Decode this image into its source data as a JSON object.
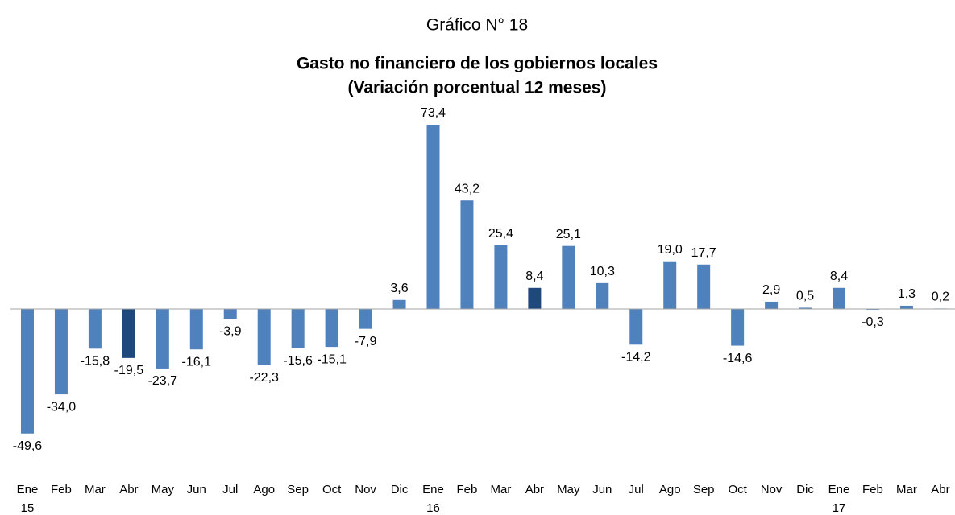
{
  "chart_data": {
    "type": "bar",
    "suptitle": "Gráfico N° 18",
    "title": "Gasto no financiero de los gobiernos locales",
    "subtitle": "(Variación porcentual 12 meses)",
    "categories": [
      "Ene",
      "Feb",
      "Mar",
      "Abr",
      "May",
      "Jun",
      "Jul",
      "Ago",
      "Sep",
      "Oct",
      "Nov",
      "Dic",
      "Ene",
      "Feb",
      "Mar",
      "Abr",
      "May",
      "Jun",
      "Jul",
      "Ago",
      "Sep",
      "Oct",
      "Nov",
      "Dic",
      "Ene",
      "Feb",
      "Mar",
      "Abr"
    ],
    "years": [
      "15",
      null,
      null,
      null,
      null,
      null,
      null,
      null,
      null,
      null,
      null,
      null,
      "16",
      null,
      null,
      null,
      null,
      null,
      null,
      null,
      null,
      null,
      null,
      null,
      "17",
      null,
      null,
      null
    ],
    "values": [
      -49.6,
      -34.0,
      -15.8,
      -19.5,
      -23.7,
      -16.1,
      -3.9,
      -22.3,
      -15.6,
      -15.1,
      -7.9,
      3.6,
      73.4,
      43.2,
      25.4,
      8.4,
      25.1,
      10.3,
      -14.2,
      19.0,
      17.7,
      -14.6,
      2.9,
      0.5,
      8.4,
      -0.3,
      1.3,
      0.2
    ],
    "value_labels": [
      "-49,6",
      "-34,0",
      "-15,8",
      "-19,5",
      "-23,7",
      "-16,1",
      "-3,9",
      "-22,3",
      "-15,6",
      "-15,1",
      "-7,9",
      "3,6",
      "73,4",
      "43,2",
      "25,4",
      "8,4",
      "25,1",
      "10,3",
      "-14,2",
      "19,0",
      "17,7",
      "-14,6",
      "2,9",
      "0,5",
      "8,4",
      "-0,3",
      "1,3",
      "0,2"
    ],
    "colors": [
      "#4f81bd",
      "#4f81bd",
      "#4f81bd",
      "#1f497d",
      "#4f81bd",
      "#4f81bd",
      "#4f81bd",
      "#4f81bd",
      "#4f81bd",
      "#4f81bd",
      "#4f81bd",
      "#4f81bd",
      "#4f81bd",
      "#4f81bd",
      "#4f81bd",
      "#1f497d",
      "#4f81bd",
      "#4f81bd",
      "#4f81bd",
      "#4f81bd",
      "#4f81bd",
      "#4f81bd",
      "#4f81bd",
      "#4f81bd",
      "#4f81bd",
      "#4f81bd",
      "#4f81bd",
      "#4f81bd"
    ],
    "ylim": [
      -60,
      80
    ]
  }
}
